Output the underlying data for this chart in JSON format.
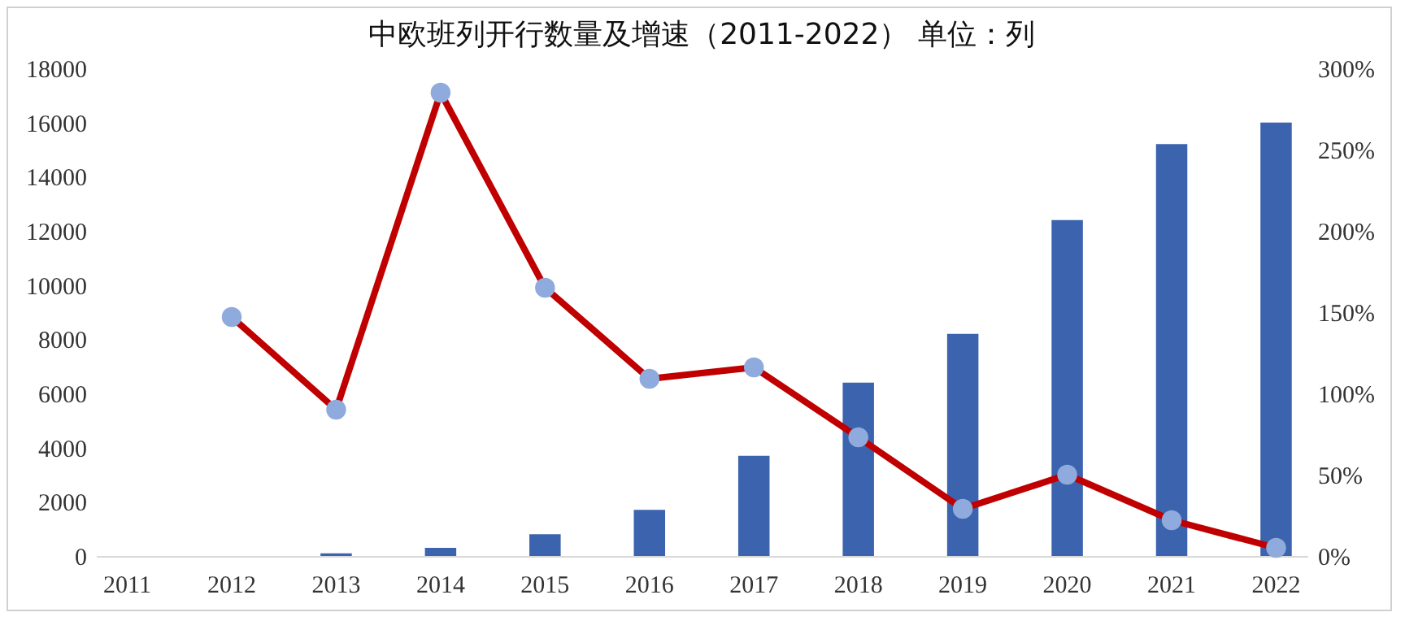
{
  "chart_data": {
    "type": "bar",
    "title": "中欧班列开行数量及增速（2011-2022）      单位：列",
    "categories": [
      "2011",
      "2012",
      "2013",
      "2014",
      "2015",
      "2016",
      "2017",
      "2018",
      "2019",
      "2020",
      "2021",
      "2022"
    ],
    "series": [
      {
        "color": "#3c64ae",
        "values": [
          0,
          0,
          100,
          300,
          800,
          1700,
          3700,
          6400,
          8200,
          12400,
          15200,
          16000
        ]
      },
      {
        "type": "line",
        "axis": "y2",
        "color": "#c00000",
        "values": [
          null,
          147,
          90,
          285,
          165,
          109,
          116,
          73,
          29,
          50,
          22,
          5
        ]
      }
    ],
    "ylim": [
      0,
      18000
    ],
    "yticks": [
      0,
      2000,
      4000,
      6000,
      8000,
      10000,
      12000,
      14000,
      16000,
      18000
    ],
    "y2lim": [
      0,
      300
    ],
    "y2ticks": [
      {
        "value": 0,
        "label": "0%"
      },
      {
        "value": 50,
        "label": "50%"
      },
      {
        "value": 100,
        "label": "100%"
      },
      {
        "value": 150,
        "label": "150%"
      },
      {
        "value": 200,
        "label": "200%"
      },
      {
        "value": 250,
        "label": "250%"
      },
      {
        "value": 300,
        "label": "300%"
      }
    ],
    "grid": false,
    "marker": "circle"
  }
}
